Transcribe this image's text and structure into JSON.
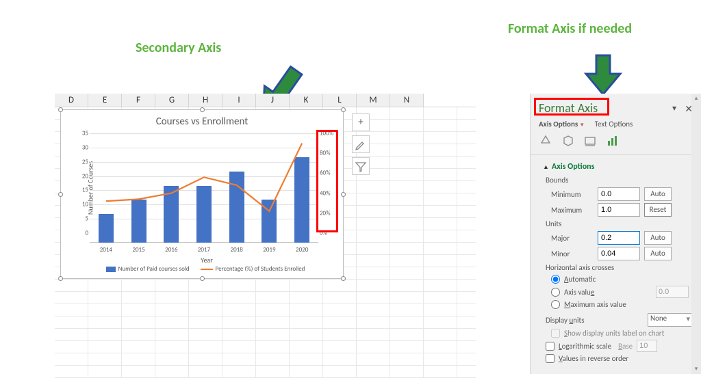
{
  "annotations": {
    "secondary_axis": "Secondary Axis",
    "format_axis": "Format Axis if needed",
    "arrow_color": "#2e8b3d",
    "arrow_border": "#2a4d9b"
  },
  "sheet": {
    "columns": [
      "D",
      "E",
      "F",
      "G",
      "H",
      "I",
      "J",
      "K",
      "L",
      "M",
      "N"
    ]
  },
  "chart": {
    "title": "Courses vs Enrollment",
    "y_label": "Number of Courses",
    "x_label": "Year",
    "y_max": 35,
    "y_step": 5,
    "y2_max": 1.0,
    "y2_step": 0.2,
    "y2_format": "percent",
    "categories": [
      "2014",
      "2015",
      "2016",
      "2017",
      "2018",
      "2019",
      "2020"
    ],
    "bars": [
      10,
      15,
      20,
      20,
      25,
      15,
      30
    ],
    "line_pct": [
      0.32,
      0.34,
      0.4,
      0.56,
      0.48,
      0.22,
      0.9
    ],
    "bar_color": "#4472c4",
    "line_color": "#ed7d31",
    "grid_color": "#e0e0e0",
    "legend": {
      "bars": "Number of Paid courses sold",
      "line": "Percentage (%) of Students Enrolled"
    }
  },
  "chart_buttons": {
    "plus": "+",
    "brush": "✎",
    "filter": "⧩"
  },
  "pane": {
    "title": "Format Axis",
    "tabs": {
      "axis_options": "Axis Options",
      "text_options": "Text Options"
    },
    "section": "Axis Options",
    "bounds_label": "Bounds",
    "min_label": "Minimum",
    "min_val": "0.0",
    "min_btn": "Auto",
    "max_label": "Maximum",
    "max_val": "1.0",
    "max_btn": "Reset",
    "units_label": "Units",
    "major_label": "Major",
    "major_val": "0.2",
    "major_btn": "Auto",
    "minor_label": "Minor",
    "minor_val": "0.04",
    "minor_btn": "Auto",
    "hcross_label": "Horizontal axis crosses",
    "radio_auto": "Automatic",
    "radio_axisval": "Axis value",
    "axisval_val": "0.0",
    "radio_maxval": "Maximum axis value",
    "display_units_label": "Display units",
    "display_units_val": "None",
    "show_units_label": "Show display units label on chart",
    "log_label": "Logarithmic scale",
    "log_base_label": "Base",
    "log_base_val": "10",
    "reverse_label": "Values in reverse order"
  }
}
